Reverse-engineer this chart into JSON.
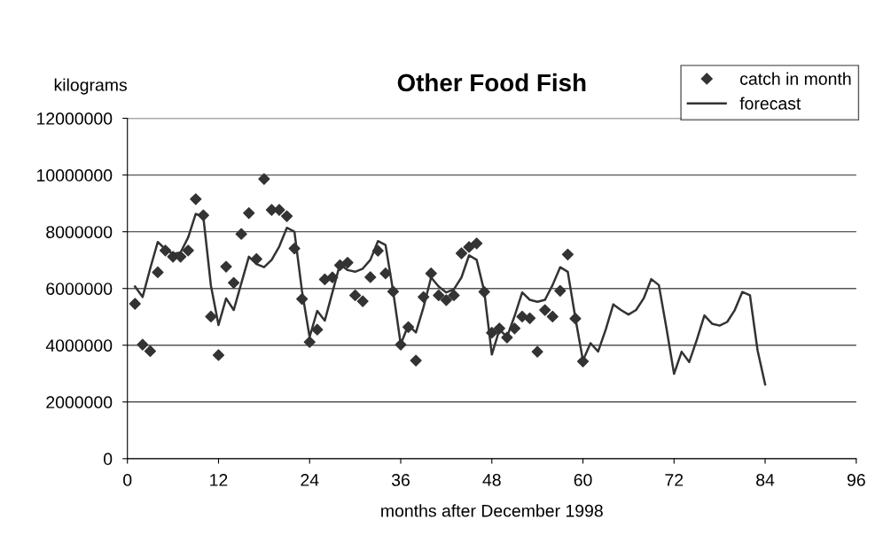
{
  "chart_data": {
    "type": "scatter",
    "title": "Other Food Fish",
    "xlabel": "months after December 1998",
    "ylabel": "kilograms",
    "xlim": [
      0,
      96
    ],
    "xticks": [
      0,
      12,
      24,
      36,
      48,
      60,
      72,
      84,
      96
    ],
    "ylim": [
      0,
      12000000
    ],
    "yticks": [
      0,
      2000000,
      4000000,
      6000000,
      8000000,
      10000000,
      12000000
    ],
    "grid": "y",
    "legend": "top right",
    "series": [
      {
        "name": "catch in month",
        "marker": "diamond",
        "color": "#333333",
        "x": [
          1,
          2,
          3,
          4,
          5,
          6,
          7,
          8,
          9,
          10,
          11,
          12,
          13,
          14,
          15,
          16,
          17,
          18,
          19,
          20,
          21,
          22,
          23,
          24,
          25,
          26,
          27,
          28,
          29,
          30,
          31,
          32,
          33,
          34,
          35,
          36,
          37,
          38,
          39,
          40,
          41,
          42,
          43,
          44,
          45,
          46,
          47,
          48,
          49,
          50,
          51,
          52,
          53,
          54,
          55,
          56,
          57,
          58,
          59,
          60
        ],
        "values": [
          5460000,
          4020000,
          3790000,
          6570000,
          7340000,
          7120000,
          7120000,
          7340000,
          9150000,
          8580000,
          5010000,
          3650000,
          6770000,
          6200000,
          7920000,
          8660000,
          7040000,
          9860000,
          8770000,
          8770000,
          8550000,
          7410000,
          5630000,
          4110000,
          4550000,
          6320000,
          6390000,
          6820000,
          6910000,
          5760000,
          5550000,
          6400000,
          7330000,
          6530000,
          5890000,
          4020000,
          4640000,
          3460000,
          5700000,
          6530000,
          5760000,
          5590000,
          5760000,
          7240000,
          7460000,
          7590000,
          5880000,
          4440000,
          4590000,
          4270000,
          4590000,
          5010000,
          4950000,
          3770000,
          5240000,
          5010000,
          5920000,
          7200000,
          4940000,
          3430000
        ]
      },
      {
        "name": "forecast",
        "type": "line",
        "marker": "none",
        "line_style": "solid",
        "color": "#333333",
        "x": [
          1,
          2,
          3,
          4,
          5,
          6,
          7,
          8,
          9,
          10,
          11,
          12,
          13,
          14,
          15,
          16,
          17,
          18,
          19,
          20,
          21,
          22,
          23,
          24,
          25,
          26,
          27,
          28,
          29,
          30,
          31,
          32,
          33,
          34,
          35,
          36,
          37,
          38,
          39,
          40,
          41,
          42,
          43,
          44,
          45,
          46,
          47,
          48,
          49,
          50,
          51,
          52,
          53,
          54,
          55,
          56,
          57,
          58,
          59,
          60,
          61,
          62,
          63,
          64,
          65,
          66,
          67,
          68,
          69,
          70,
          71,
          72,
          73,
          74,
          75,
          76,
          77,
          78,
          79,
          80,
          81,
          82,
          83,
          84
        ],
        "values": [
          6070000,
          5700000,
          6700000,
          7640000,
          7380000,
          7220000,
          7270000,
          7800000,
          8630000,
          8530000,
          6100000,
          4710000,
          5650000,
          5240000,
          6180000,
          7120000,
          6860000,
          6750000,
          7010000,
          7480000,
          8140000,
          8000000,
          5900000,
          4290000,
          5210000,
          4870000,
          5860000,
          6860000,
          6650000,
          6590000,
          6700000,
          7010000,
          7670000,
          7530000,
          5900000,
          4030000,
          4710000,
          4450000,
          5340000,
          6390000,
          6070000,
          5860000,
          5970000,
          6390000,
          7170000,
          7010000,
          5900000,
          3670000,
          4550000,
          4290000,
          5030000,
          5860000,
          5600000,
          5530000,
          5600000,
          6120000,
          6750000,
          6590000,
          4970000,
          3460000,
          4070000,
          3780000,
          4550000,
          5440000,
          5240000,
          5080000,
          5240000,
          5650000,
          6330000,
          6120000,
          4600000,
          2990000,
          3770000,
          3410000,
          4190000,
          5050000,
          4760000,
          4690000,
          4820000,
          5240000,
          5880000,
          5760000,
          3820000,
          2620000
        ]
      }
    ]
  }
}
